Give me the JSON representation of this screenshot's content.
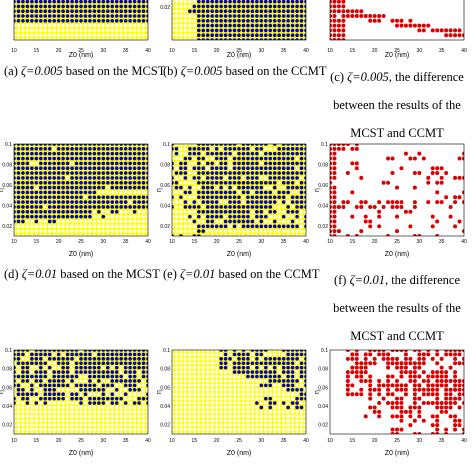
{
  "chart_data": [
    {
      "id": "a",
      "type": "scatter",
      "row": 0,
      "col": 0,
      "style": "yb",
      "xlabel": "Z0 (nm)",
      "ylabel": "",
      "xticks": [
        "10",
        "15",
        "20",
        "25",
        "30",
        "35",
        "40"
      ],
      "yticks": [],
      "pattern": "top-blue"
    },
    {
      "id": "b",
      "type": "scatter",
      "row": 0,
      "col": 1,
      "style": "yb",
      "xlabel": "Z0 (nm)",
      "ylabel": "",
      "xticks": [
        "10",
        "15",
        "20",
        "25",
        "30",
        "35",
        "40"
      ],
      "yticks": [
        "0.02"
      ],
      "pattern": "blue-right"
    },
    {
      "id": "c",
      "type": "scatter",
      "row": 0,
      "col": 2,
      "style": "red",
      "xlabel": "Z0 (nm)",
      "ylabel": "",
      "xticks": [
        "10",
        "15",
        "20",
        "25",
        "30",
        "35",
        "40"
      ],
      "yticks": [],
      "pattern": "red-curve"
    },
    {
      "id": "d",
      "type": "scatter",
      "row": 1,
      "col": 0,
      "style": "yb",
      "xlabel": "Z0 (nm)",
      "ylabel": "η",
      "xticks": [
        "10",
        "15",
        "20",
        "25",
        "30",
        "35",
        "40"
      ],
      "yticks": [
        "0.1",
        "0.08",
        "0.06",
        "0.04",
        "0.02"
      ],
      "pattern": "blue-mostly"
    },
    {
      "id": "e",
      "type": "scatter",
      "row": 1,
      "col": 1,
      "style": "yb",
      "xlabel": "Z0 (nm)",
      "ylabel": "η",
      "xticks": [
        "10",
        "15",
        "20",
        "25",
        "30",
        "35",
        "40"
      ],
      "yticks": [
        "0.1",
        "0.08",
        "0.06",
        "0.04",
        "0.02"
      ],
      "pattern": "blue-patchy"
    },
    {
      "id": "f",
      "type": "scatter",
      "row": 1,
      "col": 2,
      "style": "red",
      "xlabel": "Z0 (nm)",
      "ylabel": "η",
      "xticks": [
        "10",
        "15",
        "20",
        "25",
        "30",
        "35",
        "40"
      ],
      "yticks": [
        "0.1",
        "0.08",
        "0.06",
        "0.04",
        "0.02"
      ],
      "pattern": "red-scatter"
    },
    {
      "id": "g",
      "type": "scatter",
      "row": 2,
      "col": 0,
      "style": "yb",
      "xlabel": "Z0 (nm)",
      "ylabel": "η",
      "xticks": [
        "10",
        "15",
        "20",
        "25",
        "30",
        "35",
        "40"
      ],
      "yticks": [
        "0.1",
        "0.08",
        "0.06",
        "0.04",
        "0.02"
      ],
      "pattern": "yellow-blue-sparse"
    },
    {
      "id": "h",
      "type": "scatter",
      "row": 2,
      "col": 1,
      "style": "yb",
      "xlabel": "Z0 (nm)",
      "ylabel": "η",
      "xticks": [
        "10",
        "15",
        "20",
        "25",
        "30",
        "35",
        "40"
      ],
      "yticks": [
        "0.1",
        "0.08",
        "0.06",
        "0.04",
        "0.02"
      ],
      "pattern": "yellow-blue-corner"
    },
    {
      "id": "i",
      "type": "scatter",
      "row": 2,
      "col": 2,
      "style": "red",
      "xlabel": "Z0 (nm)",
      "ylabel": "η",
      "xticks": [
        "10",
        "15",
        "20",
        "25",
        "30",
        "35",
        "40"
      ],
      "yticks": [
        "0.1",
        "0.08",
        "0.06",
        "0.04",
        "0.02"
      ],
      "pattern": "red-upper"
    }
  ],
  "captions": {
    "a": {
      "label": "(a) ",
      "math": "ζ=0.005",
      "rest": " based on the MCST"
    },
    "b": {
      "label": "(b) ",
      "math": "ζ=0.005",
      "rest": " based on the CCMT"
    },
    "c": {
      "label": "(c) ",
      "math": "ζ=0.005,",
      "rest": " the difference between the results of the MCST and CCMT"
    },
    "d": {
      "label": "(d) ",
      "math": "ζ=0.01",
      "rest": " based on the MCST"
    },
    "e": {
      "label": "(e) ",
      "math": "ζ=0.01",
      "rest": " based on the CCMT"
    },
    "f": {
      "label": "(f) ",
      "math": "ζ=0.01,",
      "rest": " the difference between the results of the MCST and CCMT"
    }
  },
  "colors": {
    "yellow": "#ffff00",
    "blue": "#0000cc",
    "red": "#dd0000",
    "grid": "#ffffff"
  }
}
